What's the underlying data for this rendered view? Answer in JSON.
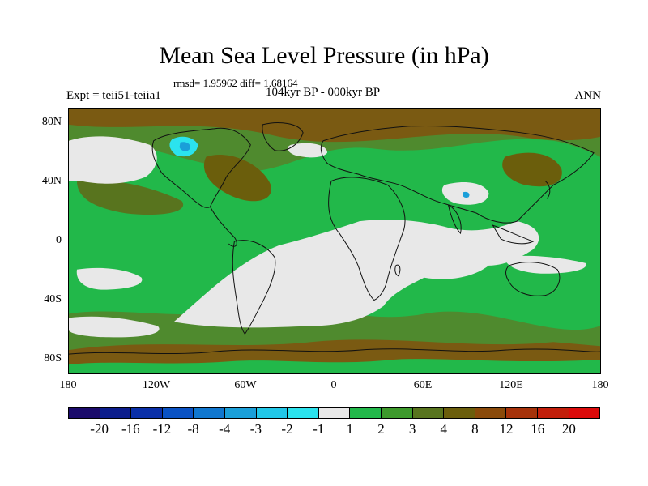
{
  "title": "Mean Sea Level Pressure (in hPa)",
  "stats": "rmsd= 1.95962 diff= 1.68164",
  "experiment": "Expt = teii51-teiia1",
  "period": "104kyr BP - 000kyr BP",
  "season": "ANN",
  "lat_labels": [
    "80N",
    "40N",
    "0",
    "40S",
    "80S"
  ],
  "lon_labels": [
    "180",
    "120W",
    "60W",
    "0",
    "60E",
    "120E",
    "180"
  ],
  "colorbar": {
    "colors": [
      "#1b0b6b",
      "#0c1d8c",
      "#0a2fa8",
      "#0a52c4",
      "#1077cf",
      "#1a9fd9",
      "#21c7e8",
      "#2be3ee",
      "#e8e8e8",
      "#22b84a",
      "#3d9a2c",
      "#58741e",
      "#6b5e0c",
      "#8a4a0a",
      "#a6320a",
      "#c21e0a",
      "#db0a0a"
    ],
    "labels": [
      "-20",
      "-16",
      "-12",
      "-8",
      "-4",
      "-3",
      "-2",
      "-1",
      "1",
      "2",
      "3",
      "4",
      "8",
      "12",
      "16",
      "20"
    ]
  },
  "map": {
    "colors": {
      "strong": "#7a5a12",
      "mid": "#4f8a2e",
      "weak": "#22b84a",
      "neutral": "#e8e8e8",
      "negative": "#2be3ee",
      "negative_strong": "#1a9fd9",
      "coast": "#111111"
    }
  }
}
